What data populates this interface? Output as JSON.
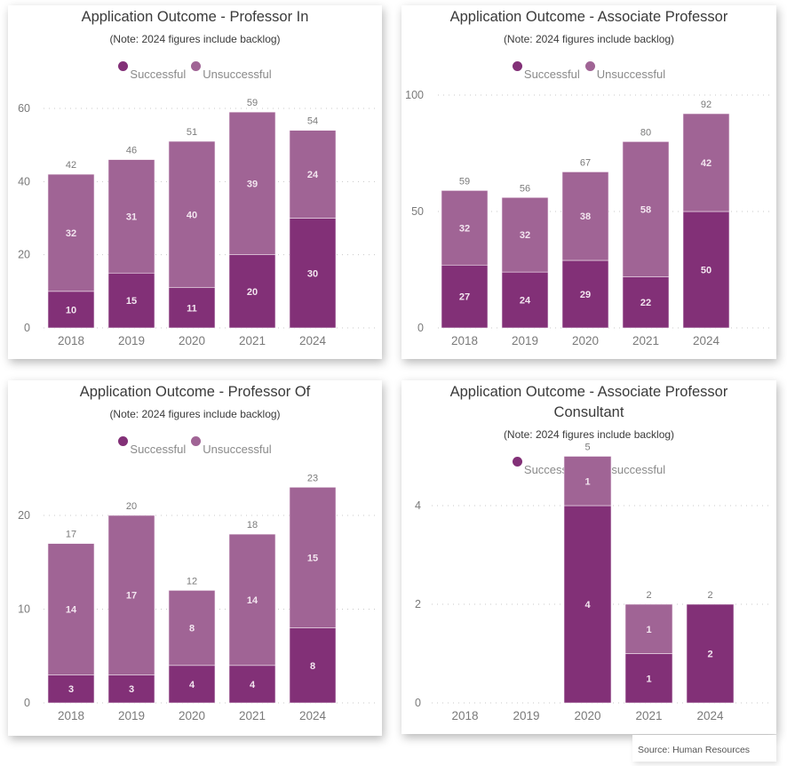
{
  "colors": {
    "successful": "#823077",
    "unsuccessful": "#a06495",
    "axis_text": "#7a7a7a",
    "gridline": "#c8c8c8",
    "inner_label": "#f3e6f0",
    "total_label": "#7a7a7a"
  },
  "source": "Source:  Human Resources",
  "chart_data": [
    {
      "type": "bar",
      "stacked": true,
      "title": "Application Outcome - Professor In",
      "subtitle": "(Note: 2024 figures include backlog)",
      "legend": [
        "Successful",
        "Unsuccessful"
      ],
      "legend_position": "top-center",
      "categories": [
        "2018",
        "2019",
        "2020",
        "2021",
        "2024"
      ],
      "series": [
        {
          "name": "Successful",
          "values": [
            10,
            15,
            11,
            20,
            30
          ]
        },
        {
          "name": "Unsuccessful",
          "values": [
            32,
            31,
            40,
            39,
            24
          ]
        }
      ],
      "totals": [
        42,
        46,
        51,
        59,
        54
      ],
      "yticks": [
        0,
        20,
        40,
        60
      ],
      "ylim": [
        0,
        62
      ],
      "grid": true,
      "xlabel": "",
      "ylabel": ""
    },
    {
      "type": "bar",
      "stacked": true,
      "title": "Application Outcome - Associate Professor",
      "subtitle": "(Note: 2024 figures include backlog)",
      "legend": [
        "Successful",
        "Unsuccessful"
      ],
      "legend_position": "top-center",
      "categories": [
        "2018",
        "2019",
        "2020",
        "2021",
        "2024"
      ],
      "series": [
        {
          "name": "Successful",
          "values": [
            27,
            24,
            29,
            22,
            50
          ]
        },
        {
          "name": "Unsuccessful",
          "values": [
            32,
            32,
            38,
            58,
            42
          ]
        }
      ],
      "totals": [
        59,
        56,
        67,
        80,
        92
      ],
      "yticks": [
        0,
        50,
        100
      ],
      "ylim": [
        0,
        100
      ],
      "grid": true,
      "xlabel": "",
      "ylabel": ""
    },
    {
      "type": "bar",
      "stacked": true,
      "title": "Application Outcome - Professor Of",
      "subtitle": "(Note: 2024 figures include backlog)",
      "legend": [
        "Successful",
        "Unsuccessful"
      ],
      "legend_position": "top-center",
      "categories": [
        "2018",
        "2019",
        "2020",
        "2021",
        "2024"
      ],
      "series": [
        {
          "name": "Successful",
          "values": [
            3,
            3,
            4,
            4,
            8
          ]
        },
        {
          "name": "Unsuccessful",
          "values": [
            14,
            17,
            8,
            14,
            15
          ]
        }
      ],
      "totals": [
        17,
        20,
        12,
        18,
        23
      ],
      "yticks": [
        0,
        10,
        20
      ],
      "ylim": [
        0,
        23
      ],
      "grid": true,
      "xlabel": "",
      "ylabel": ""
    },
    {
      "type": "bar",
      "stacked": true,
      "title": "Application Outcome - Associate Professor Consultant",
      "title_lines": [
        "Application Outcome - Associate Professor",
        "Consultant"
      ],
      "subtitle": "(Note: 2024 figures include backlog)",
      "legend": [
        "Successful",
        "Unsuccessful"
      ],
      "legend_position": "top-center",
      "categories": [
        "2018",
        "2019",
        "2020",
        "2021",
        "2024"
      ],
      "series": [
        {
          "name": "Successful",
          "values": [
            null,
            null,
            4,
            1,
            2
          ]
        },
        {
          "name": "Unsuccessful",
          "values": [
            null,
            null,
            1,
            1,
            null
          ]
        }
      ],
      "totals": [
        null,
        null,
        5,
        2,
        2
      ],
      "yticks": [
        0,
        2,
        4
      ],
      "ylim": [
        0,
        5
      ],
      "grid": true,
      "xlabel": "",
      "ylabel": ""
    }
  ]
}
